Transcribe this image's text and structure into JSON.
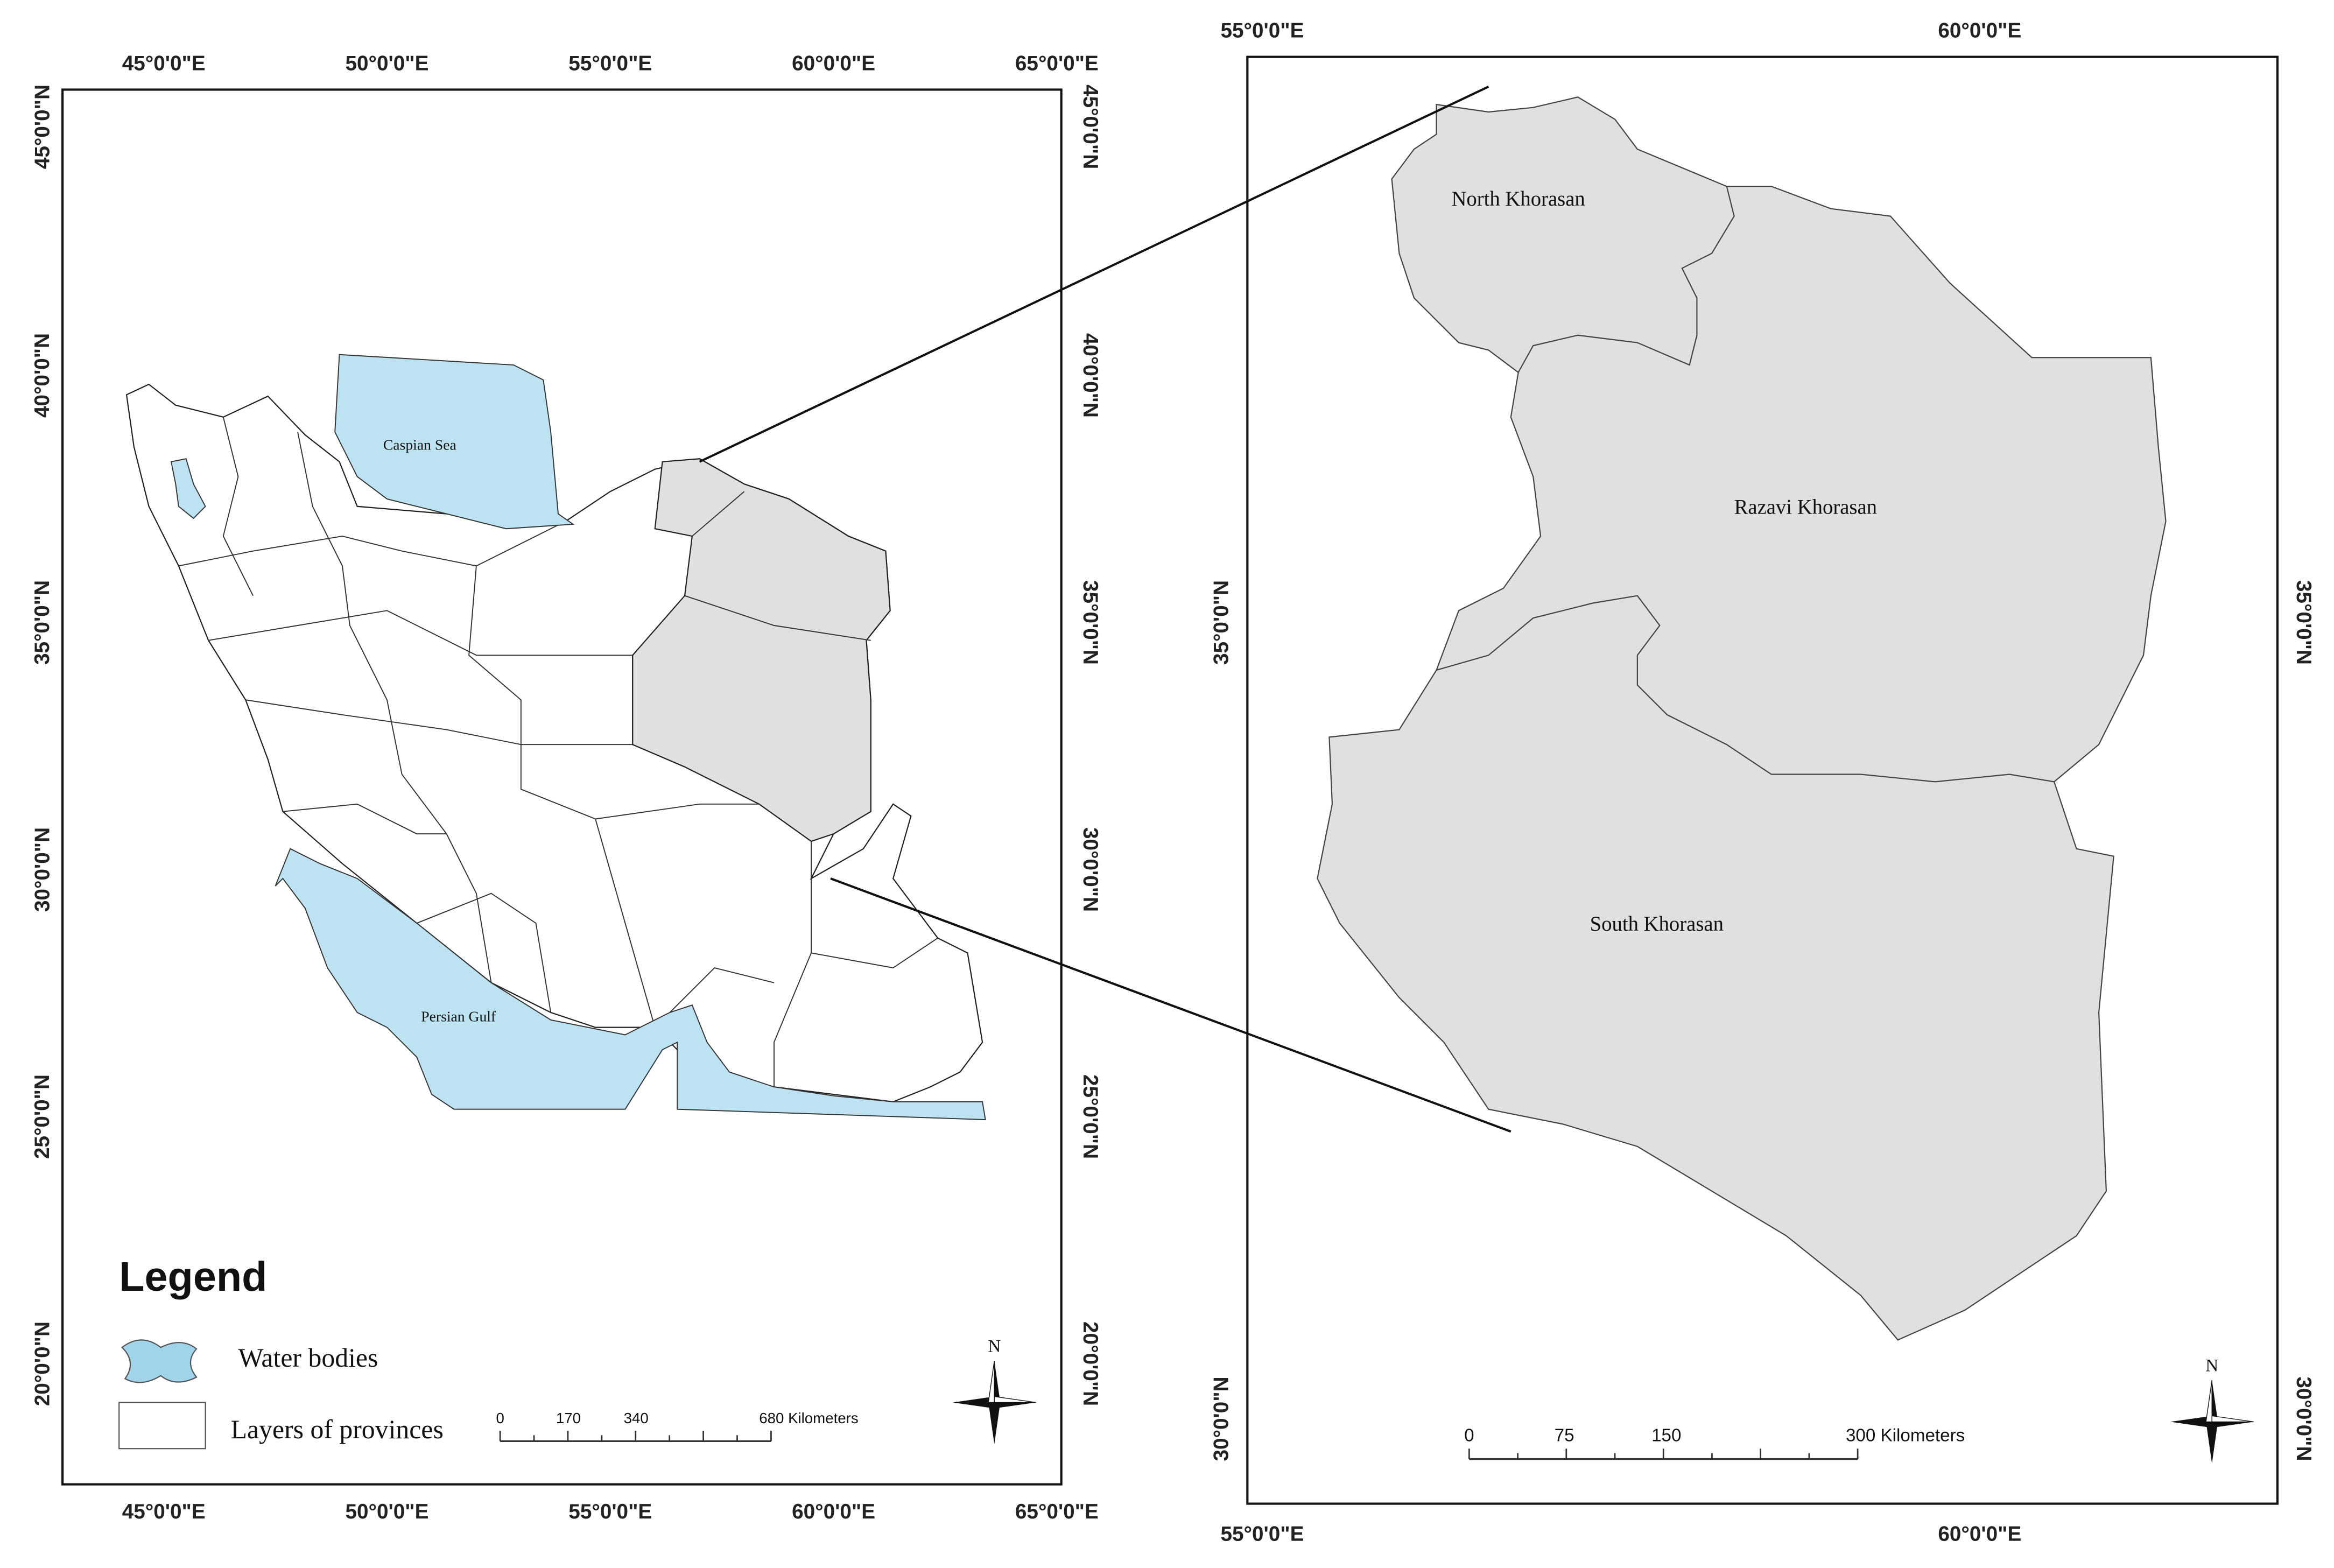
{
  "left_map": {
    "lon_ticks": [
      "45°0'0\"E",
      "50°0'0\"E",
      "55°0'0\"E",
      "60°0'0\"E",
      "65°0'0\"E"
    ],
    "lat_ticks": [
      "45°0'0\"N",
      "40°0'0\"N",
      "35°0'0\"N",
      "30°0'0\"N",
      "25°0'0\"N",
      "20°0'0\"N"
    ],
    "labels": {
      "caspian": "Caspian Sea",
      "gulf": "Persian Gulf"
    },
    "legend": {
      "title": "Legend",
      "items": [
        "Water bodies",
        "Layers of provinces"
      ]
    },
    "scale_bar": [
      "0",
      "170",
      "340",
      "680 Kilometers"
    ],
    "north": "N"
  },
  "right_map": {
    "lon_ticks": [
      "55°0'0\"E",
      "60°0'0\"E"
    ],
    "lat_ticks": [
      "35°0'0\"N",
      "30°0'0\"N"
    ],
    "labels": [
      "North Khorasan",
      "Razavi Khorasan",
      "South Khorasan"
    ],
    "scale_bar": [
      "0",
      "75",
      "150",
      "300 Kilometers"
    ],
    "north": "N"
  }
}
